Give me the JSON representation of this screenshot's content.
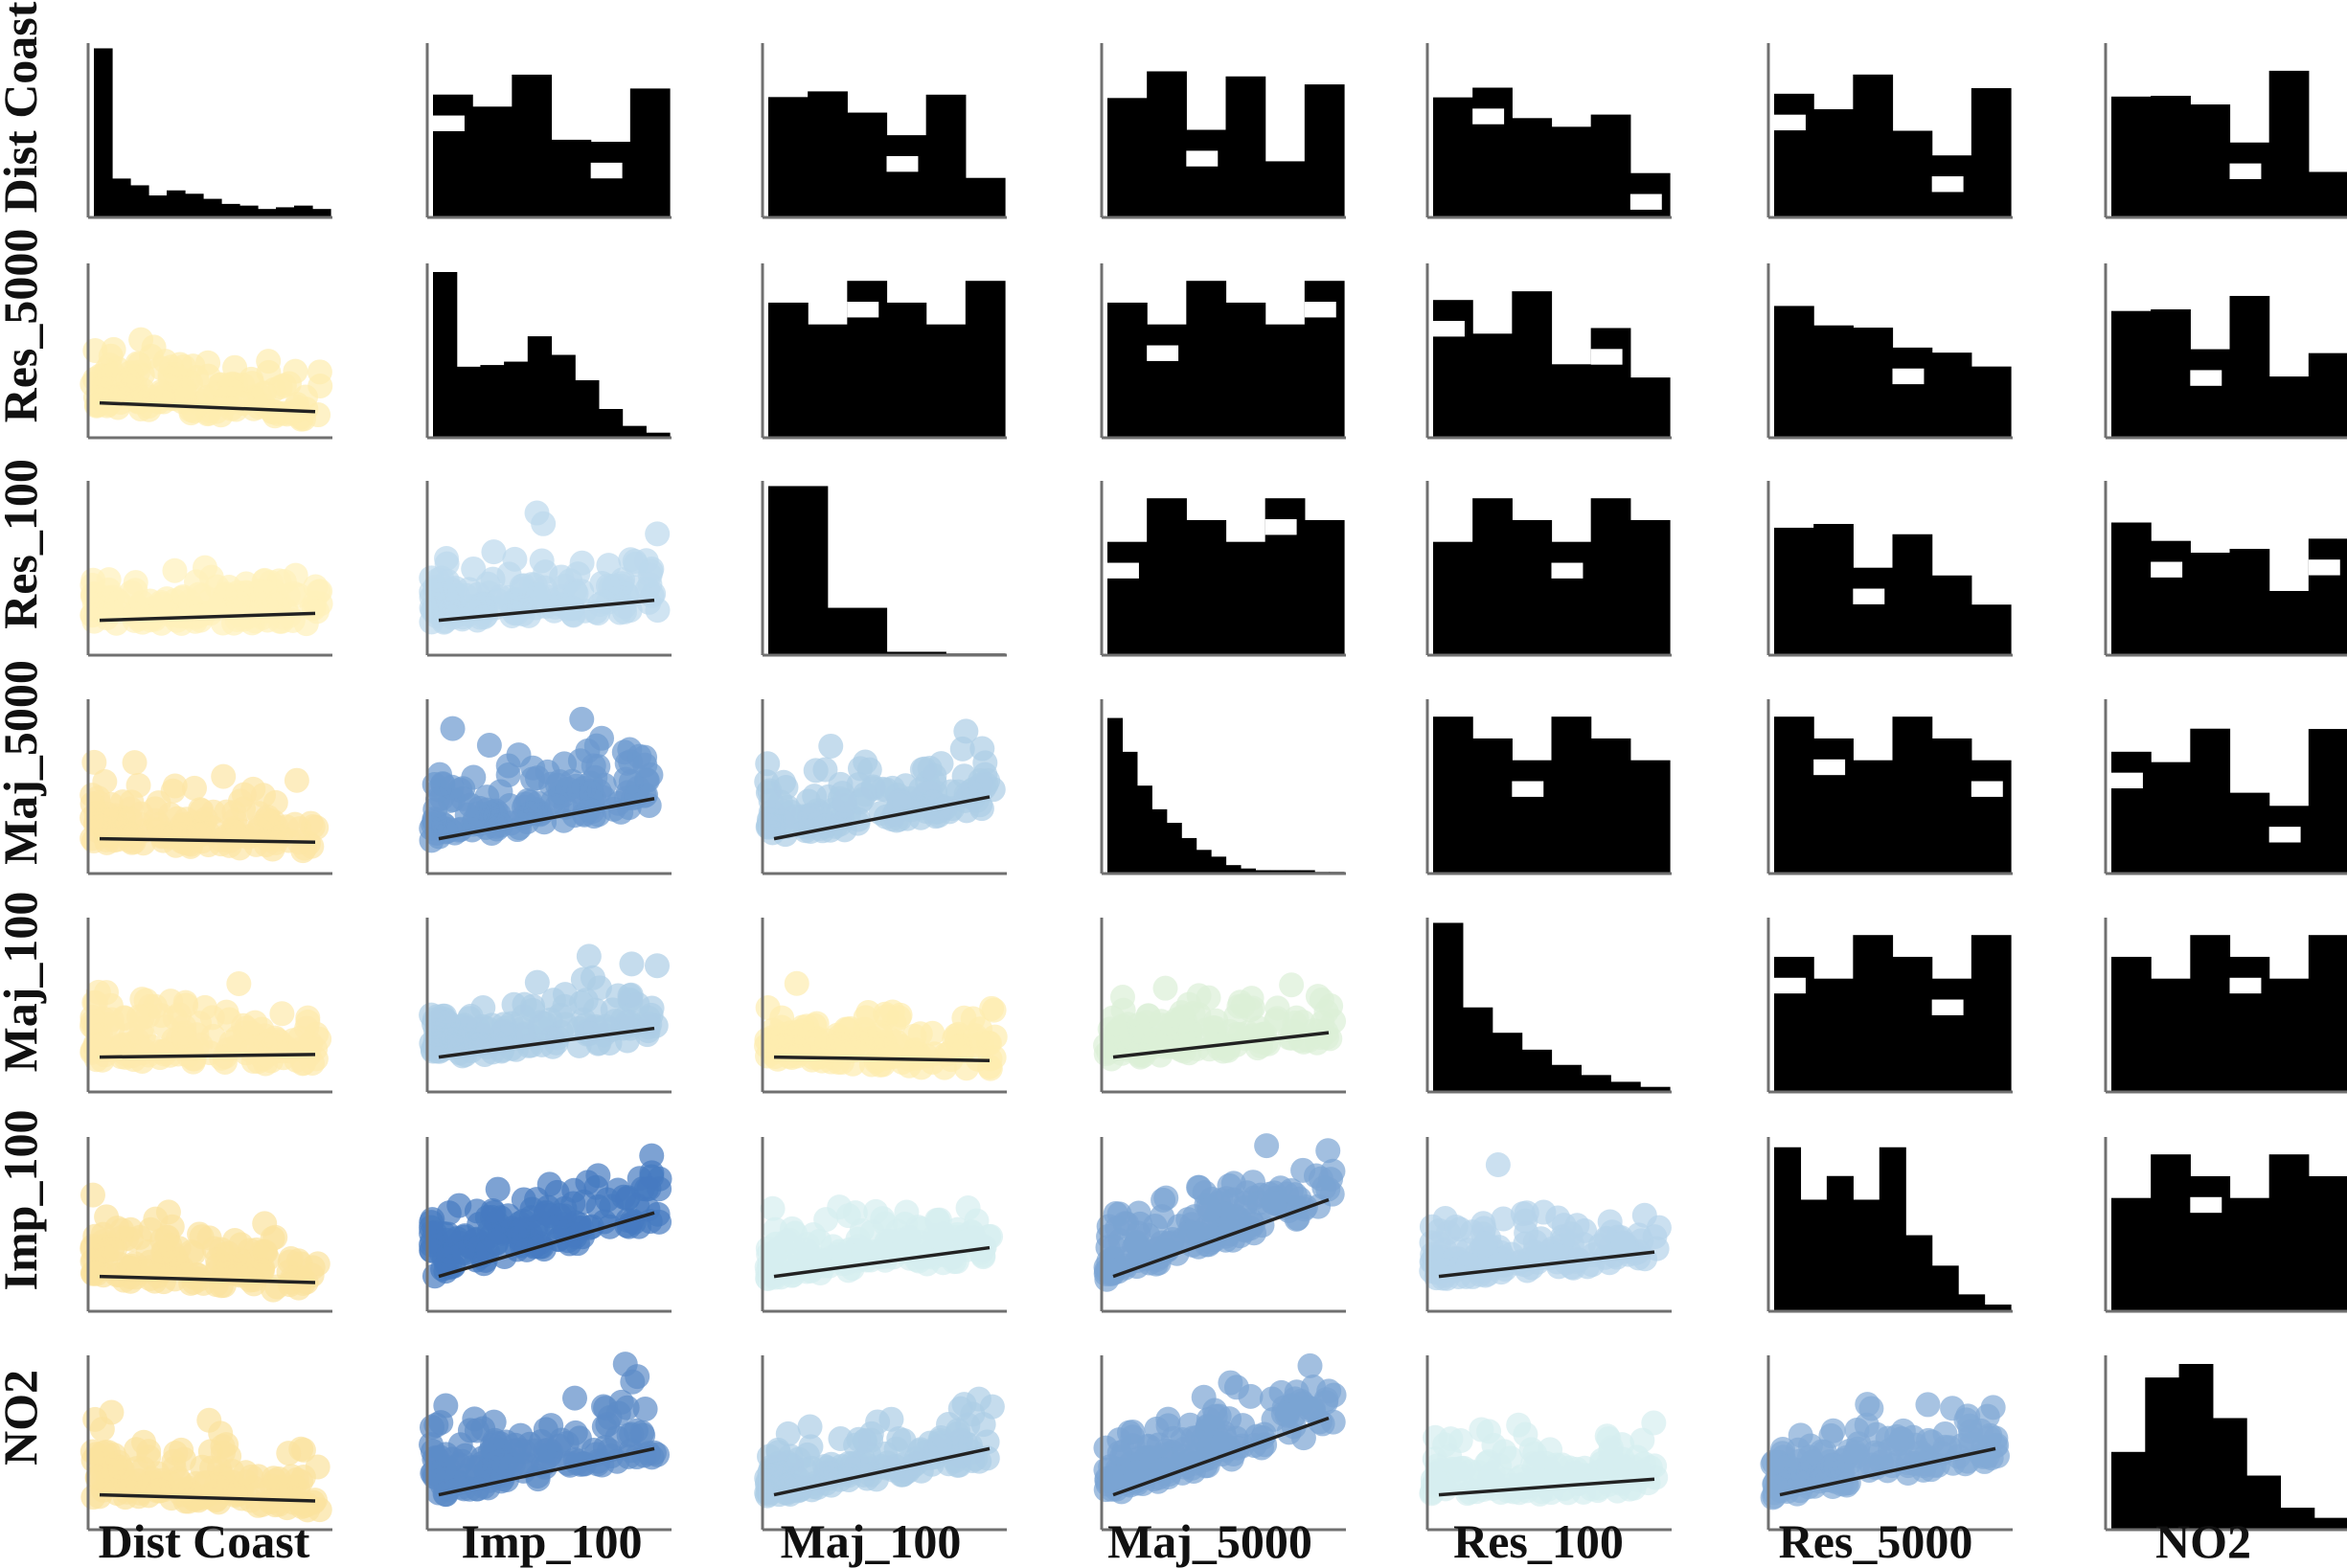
{
  "chart_data": {
    "type": "pairplot",
    "variables": [
      "Dist Coast",
      "Imp_100",
      "Maj_100",
      "Maj_5000",
      "Res_100",
      "Res_5000",
      "NO2"
    ],
    "row_variables": [
      "Dist Coast",
      "Res_5000",
      "Res_100",
      "Maj_5000",
      "Maj_100",
      "Imp_100",
      "NO2"
    ],
    "column_variables": [
      "Dist Coast",
      "Imp_100",
      "Maj_100",
      "Maj_5000",
      "Res_100",
      "Res_5000",
      "NO2"
    ],
    "lower_triangle": "scatter with linear fit line; marker color encodes correlation strength",
    "diagonal": "histogram",
    "upper_triangle": "binned 2D histogram (black)",
    "diagonal_histograms": {
      "Dist Coast": [
        1.0,
        0.23,
        0.19,
        0.13,
        0.16,
        0.14,
        0.11,
        0.08,
        0.07,
        0.05,
        0.06,
        0.07,
        0.05
      ],
      "Res_5000": [
        0.98,
        0.42,
        0.43,
        0.45,
        0.6,
        0.49,
        0.34,
        0.17,
        0.07,
        0.03
      ],
      "Res_100": [
        1.0,
        0.28,
        0.02,
        0.01
      ],
      "Maj_5000": [
        0.92,
        0.72,
        0.52,
        0.38,
        0.3,
        0.21,
        0.14,
        0.1,
        0.05,
        0.03,
        0.02,
        0.02,
        0.02,
        0.02,
        0.01,
        0.01
      ],
      "Maj_100": [
        1.0,
        0.5,
        0.35,
        0.25,
        0.16,
        0.1,
        0.06,
        0.03
      ],
      "Imp_100": [
        0.97,
        0.66,
        0.8,
        0.66,
        0.97,
        0.45,
        0.27,
        0.1,
        0.04
      ],
      "NO2": [
        0.46,
        0.9,
        0.98,
        0.66,
        0.32,
        0.13,
        0.07
      ]
    },
    "scatter_fits": [
      {
        "row": "Res_5000",
        "column": "Dist Coast",
        "slope": -0.18,
        "strength": 0.2,
        "palette": "yellow"
      },
      {
        "row": "Res_100",
        "column": "Dist Coast",
        "slope": 0.0,
        "strength": 0.05,
        "palette": "yellow"
      },
      {
        "row": "Res_100",
        "column": "Imp_100",
        "slope": 0.15,
        "strength": 0.15,
        "palette": "blue"
      },
      {
        "row": "Maj_5000",
        "column": "Dist Coast",
        "slope": -0.12,
        "strength": 0.35,
        "palette": "yellow"
      },
      {
        "row": "Maj_5000",
        "column": "Imp_100",
        "slope": 0.38,
        "strength": 0.7,
        "palette": "blue"
      },
      {
        "row": "Maj_5000",
        "column": "Maj_100",
        "slope": 0.4,
        "strength": 0.25,
        "palette": "blue"
      },
      {
        "row": "Maj_100",
        "column": "Dist Coast",
        "slope": -0.05,
        "strength": 0.25,
        "palette": "yellow"
      },
      {
        "row": "Maj_100",
        "column": "Imp_100",
        "slope": 0.25,
        "strength": 0.25,
        "palette": "blue"
      },
      {
        "row": "Maj_100",
        "column": "Maj_100",
        "slope": -0.12,
        "strength": 0.2,
        "palette": "yellow"
      },
      {
        "row": "Maj_100",
        "column": "Maj_5000",
        "slope": 0.2,
        "strength": 0.1,
        "palette": "green"
      },
      {
        "row": "Imp_100",
        "column": "Dist Coast",
        "slope": -0.15,
        "strength": 0.45,
        "palette": "yellow"
      },
      {
        "row": "Imp_100",
        "column": "Imp_100",
        "slope": 0.65,
        "strength": 0.95,
        "palette": "blue"
      },
      {
        "row": "Imp_100",
        "column": "Maj_100",
        "slope": 0.25,
        "strength": 0.12,
        "palette": "teal"
      },
      {
        "row": "Imp_100",
        "column": "Maj_5000",
        "slope": 0.8,
        "strength": 0.6,
        "palette": "blue"
      },
      {
        "row": "Imp_100",
        "column": "Res_100",
        "slope": 0.2,
        "strength": 0.2,
        "palette": "blue"
      },
      {
        "row": "NO2",
        "column": "Dist Coast",
        "slope": -0.15,
        "strength": 0.45,
        "palette": "yellow"
      },
      {
        "row": "NO2",
        "column": "Imp_100",
        "slope": 0.45,
        "strength": 0.8,
        "palette": "blue"
      },
      {
        "row": "NO2",
        "column": "Maj_100",
        "slope": 0.45,
        "strength": 0.25,
        "palette": "blue"
      },
      {
        "row": "NO2",
        "column": "Maj_5000",
        "slope": 0.8,
        "strength": 0.6,
        "palette": "blue"
      },
      {
        "row": "NO2",
        "column": "Res_100",
        "slope": 0.1,
        "strength": 0.08,
        "palette": "teal"
      },
      {
        "row": "NO2",
        "column": "Res_5000",
        "slope": 0.45,
        "strength": 0.55,
        "palette": "blue"
      }
    ],
    "colors": {
      "yellow_light": "#fff3bd",
      "yellow_dark": "#f7cf78",
      "blue_light": "#d2ebf4",
      "blue_dark": "#3f74bd",
      "green": "#dcefd7",
      "teal": "#d6eef0",
      "histogram": "#000000",
      "axis": "#707070",
      "fit_line": "#222222"
    }
  }
}
